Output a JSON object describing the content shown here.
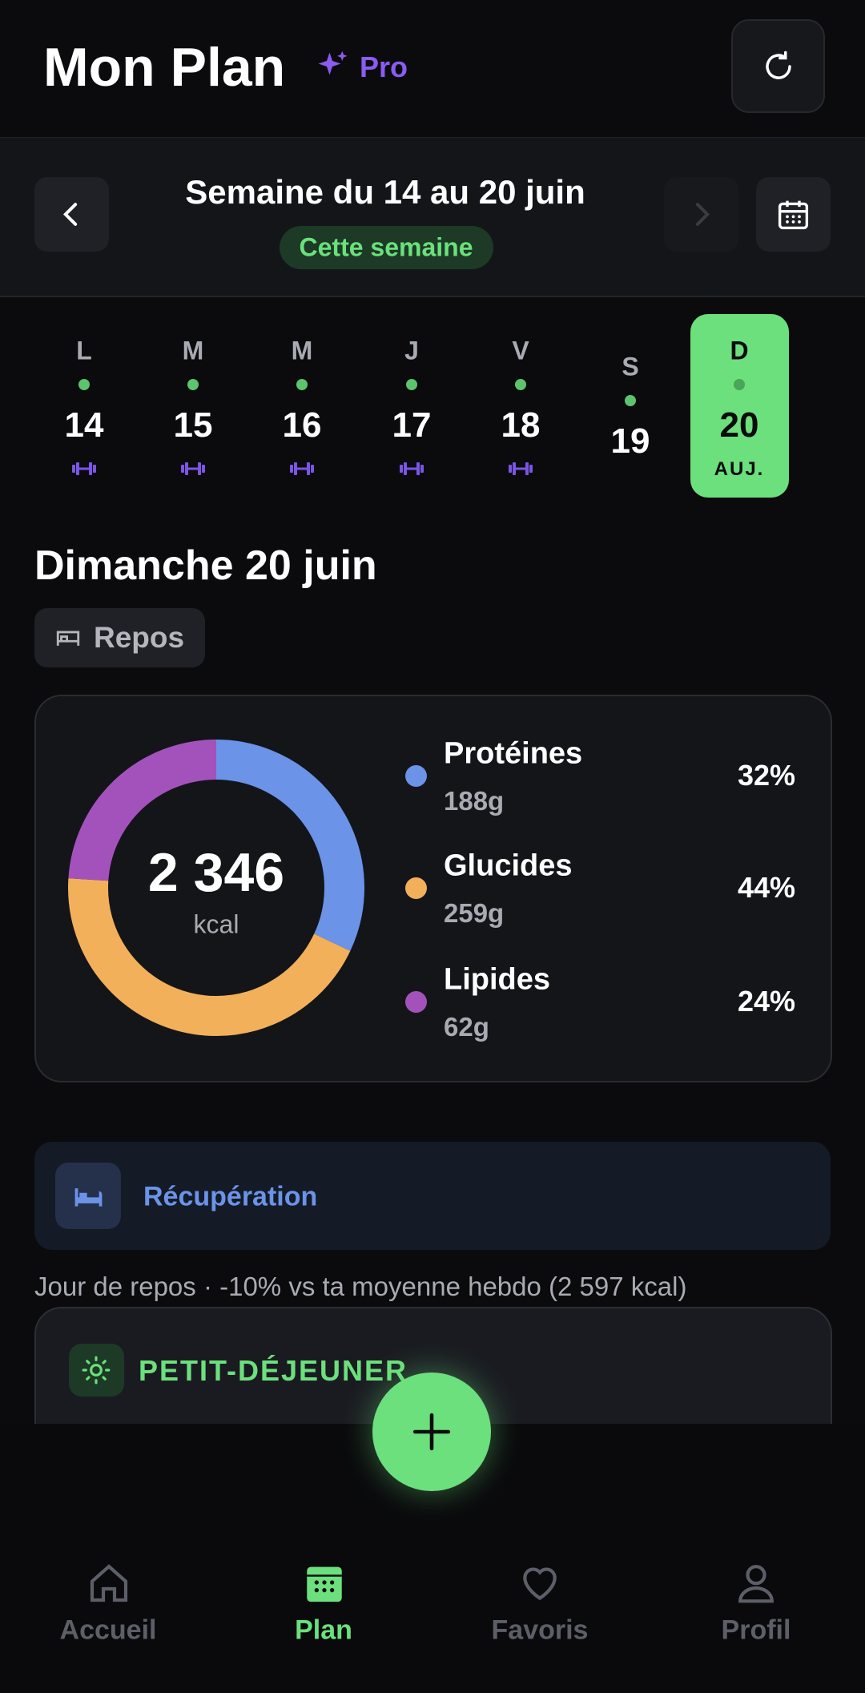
{
  "header": {
    "title": "Mon Plan",
    "badge": "Pro"
  },
  "week": {
    "title": "Semaine du 14 au 20 juin",
    "status": "Cette semaine"
  },
  "days": [
    {
      "letter": "L",
      "number": "14",
      "workout": true
    },
    {
      "letter": "M",
      "number": "15",
      "workout": true
    },
    {
      "letter": "M",
      "number": "16",
      "workout": true
    },
    {
      "letter": "J",
      "number": "17",
      "workout": true
    },
    {
      "letter": "V",
      "number": "18",
      "workout": true
    },
    {
      "letter": "S",
      "number": "19",
      "workout": false
    },
    {
      "letter": "D",
      "number": "20",
      "workout": false,
      "selected": true,
      "today_label": "AUJ."
    }
  ],
  "day": {
    "title": "Dimanche 20 juin",
    "tag": "Repos"
  },
  "nutrition": {
    "total": "2 346",
    "unit": "kcal",
    "macros": [
      {
        "name": "Protéines",
        "grams": "188g",
        "value": 32,
        "value_label": "32%",
        "color": "#6b93e8"
      },
      {
        "name": "Glucides",
        "grams": "259g",
        "value": 44,
        "value_label": "44%",
        "color": "#f3b05a"
      },
      {
        "name": "Lipides",
        "grams": "62g",
        "value": 24,
        "value_label": "24%",
        "color": "#a452bb"
      }
    ]
  },
  "recovery": {
    "title": "Récupération",
    "note": "Jour de repos · -10% vs ta moyenne hebdo (2 597 kcal)"
  },
  "meal": {
    "title": "PETIT-DÉJEUNER"
  },
  "nav": [
    {
      "label": "Accueil",
      "active": false
    },
    {
      "label": "Plan",
      "active": true
    },
    {
      "label": "Favoris",
      "active": false
    },
    {
      "label": "Profil",
      "active": false
    }
  ]
}
